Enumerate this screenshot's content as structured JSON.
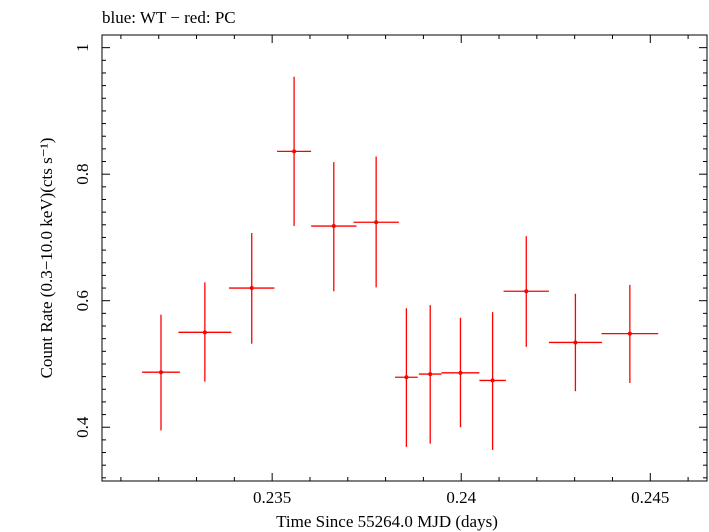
{
  "chart_data": {
    "type": "scatter",
    "title": "blue: WT − red: PC",
    "xlabel": "Time Since 55264.0 MJD (days)",
    "ylabel": "Count Rate (0.3−10.0 keV)(cts s⁻¹)",
    "xlim": [
      0.2305,
      0.2465
    ],
    "ylim": [
      0.315,
      1.02
    ],
    "x_ticks": [
      0.235,
      0.24,
      0.245
    ],
    "x_tick_labels": [
      "0.235",
      "0.24",
      "0.245"
    ],
    "y_ticks": [
      0.4,
      0.6,
      0.8,
      1.0
    ],
    "y_tick_labels": [
      "0.4",
      "0.6",
      "0.8",
      "1"
    ],
    "series": [
      {
        "name": "PC",
        "color": "#ff0000",
        "points": [
          {
            "x": 0.23206,
            "xerr": 0.0005,
            "y": 0.487,
            "ylo": 0.395,
            "yhi": 0.578
          },
          {
            "x": 0.23322,
            "xerr": 0.0007,
            "y": 0.55,
            "ylo": 0.472,
            "yhi": 0.629
          },
          {
            "x": 0.23446,
            "xerr": 0.0006,
            "y": 0.62,
            "ylo": 0.532,
            "yhi": 0.707
          },
          {
            "x": 0.23558,
            "xerr": 0.00045,
            "y": 0.836,
            "ylo": 0.718,
            "yhi": 0.954
          },
          {
            "x": 0.23663,
            "xerr": 0.0006,
            "y": 0.718,
            "ylo": 0.615,
            "yhi": 0.819
          },
          {
            "x": 0.23775,
            "xerr": 0.0006,
            "y": 0.724,
            "ylo": 0.621,
            "yhi": 0.828
          },
          {
            "x": 0.23855,
            "xerr": 0.0003,
            "y": 0.479,
            "ylo": 0.369,
            "yhi": 0.588
          },
          {
            "x": 0.23918,
            "xerr": 0.0003,
            "y": 0.484,
            "ylo": 0.374,
            "yhi": 0.593
          },
          {
            "x": 0.23998,
            "xerr": 0.0005,
            "y": 0.486,
            "ylo": 0.4,
            "yhi": 0.573
          },
          {
            "x": 0.24083,
            "xerr": 0.00035,
            "y": 0.474,
            "ylo": 0.364,
            "yhi": 0.582
          },
          {
            "x": 0.24172,
            "xerr": 0.0006,
            "y": 0.615,
            "ylo": 0.527,
            "yhi": 0.702
          },
          {
            "x": 0.24302,
            "xerr": 0.0007,
            "y": 0.534,
            "ylo": 0.457,
            "yhi": 0.611
          },
          {
            "x": 0.24446,
            "xerr": 0.00075,
            "y": 0.548,
            "ylo": 0.47,
            "yhi": 0.625
          }
        ]
      }
    ]
  }
}
